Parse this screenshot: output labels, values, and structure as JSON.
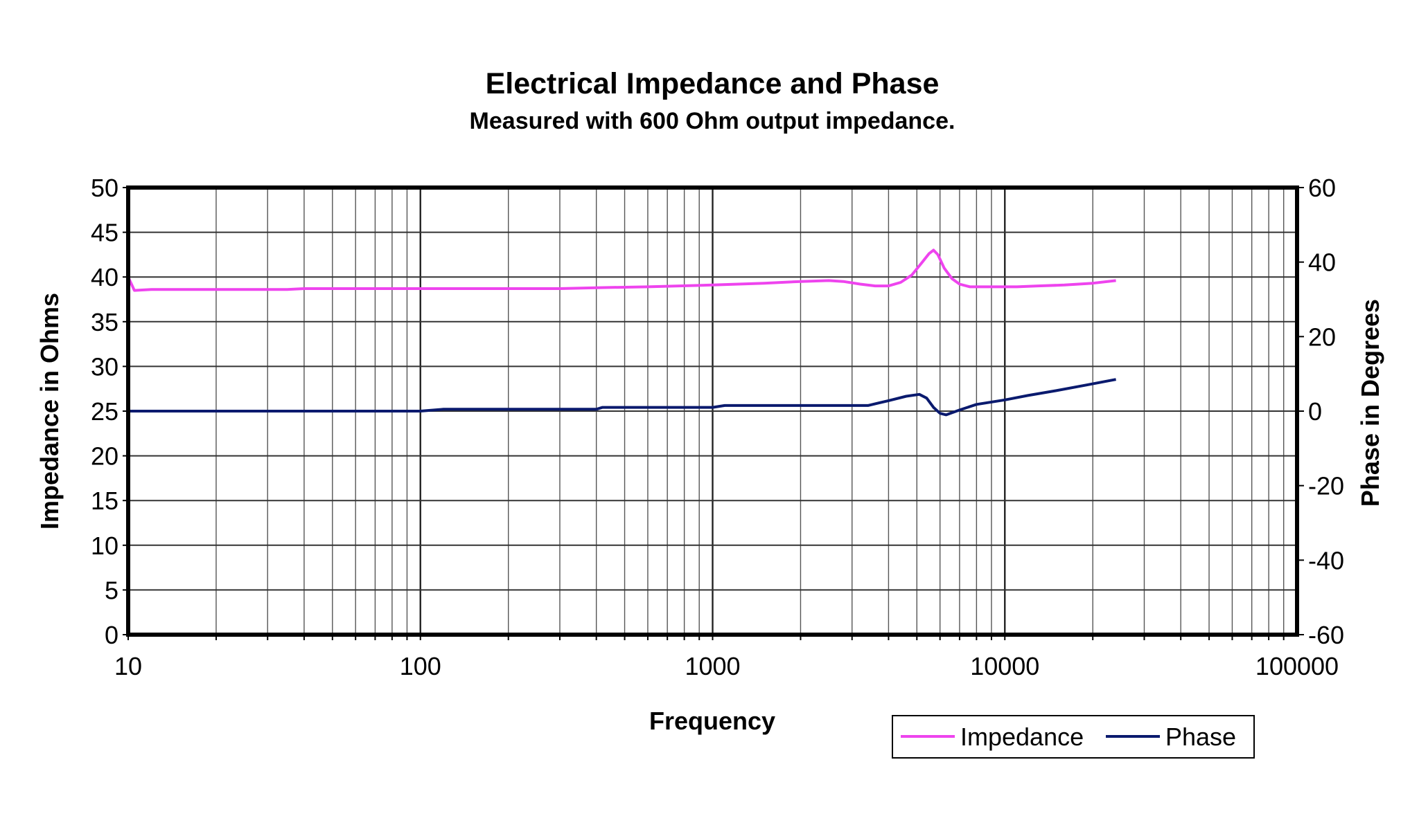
{
  "chart_data": {
    "type": "line",
    "title": "Electrical Impedance and Phase",
    "subtitle": "Measured with 600 Ohm output impedance.",
    "xlabel": "Frequency",
    "ylabel": "Impedance in Ohms",
    "y2label": "Phase in Degrees",
    "xscale": "log",
    "xlim": [
      10,
      100000
    ],
    "ylim": [
      0,
      50
    ],
    "y2lim": [
      -60,
      60
    ],
    "xticks": [
      "10",
      "100",
      "1000",
      "10000",
      "100000"
    ],
    "yticks": [
      "0",
      "5",
      "10",
      "15",
      "20",
      "25",
      "30",
      "35",
      "40",
      "45",
      "50"
    ],
    "y2ticks": [
      "-60",
      "-40",
      "-20",
      "0",
      "20",
      "40",
      "60"
    ],
    "grid": true,
    "legend_position": "bottom-right",
    "series": [
      {
        "name": "Impedance",
        "axis": "left",
        "color": "#ee44ee",
        "x": [
          10,
          10.5,
          12,
          20,
          35,
          40,
          100,
          300,
          400,
          600,
          1000,
          1500,
          2000,
          2500,
          2800,
          3200,
          3600,
          4000,
          4400,
          4800,
          5200,
          5500,
          5700,
          5900,
          6200,
          6600,
          7000,
          7600,
          8500,
          10000,
          11000,
          13000,
          16000,
          20000,
          24000
        ],
        "y": [
          40,
          38.5,
          38.6,
          38.6,
          38.6,
          38.7,
          38.7,
          38.7,
          38.8,
          38.9,
          39.1,
          39.3,
          39.5,
          39.6,
          39.5,
          39.2,
          39.0,
          39.0,
          39.4,
          40.2,
          41.6,
          42.6,
          43.0,
          42.5,
          41.0,
          39.8,
          39.2,
          38.9,
          38.9,
          38.9,
          38.9,
          39.0,
          39.1,
          39.3,
          39.6
        ]
      },
      {
        "name": "Phase",
        "axis": "right",
        "color": "#0a1a6e",
        "x": [
          10,
          50,
          100,
          120,
          400,
          420,
          1000,
          1100,
          2000,
          3400,
          4000,
          4600,
          5100,
          5400,
          5700,
          6000,
          6300,
          7000,
          8000,
          10000,
          12000,
          15000,
          19000,
          24000
        ],
        "y": [
          0,
          0,
          0,
          0.5,
          0.5,
          1,
          1,
          1.5,
          1.5,
          1.5,
          2.8,
          4.0,
          4.5,
          3.5,
          1.0,
          -0.6,
          -1.0,
          0.3,
          1.8,
          3.0,
          4.2,
          5.5,
          7.0,
          8.5
        ]
      }
    ]
  }
}
